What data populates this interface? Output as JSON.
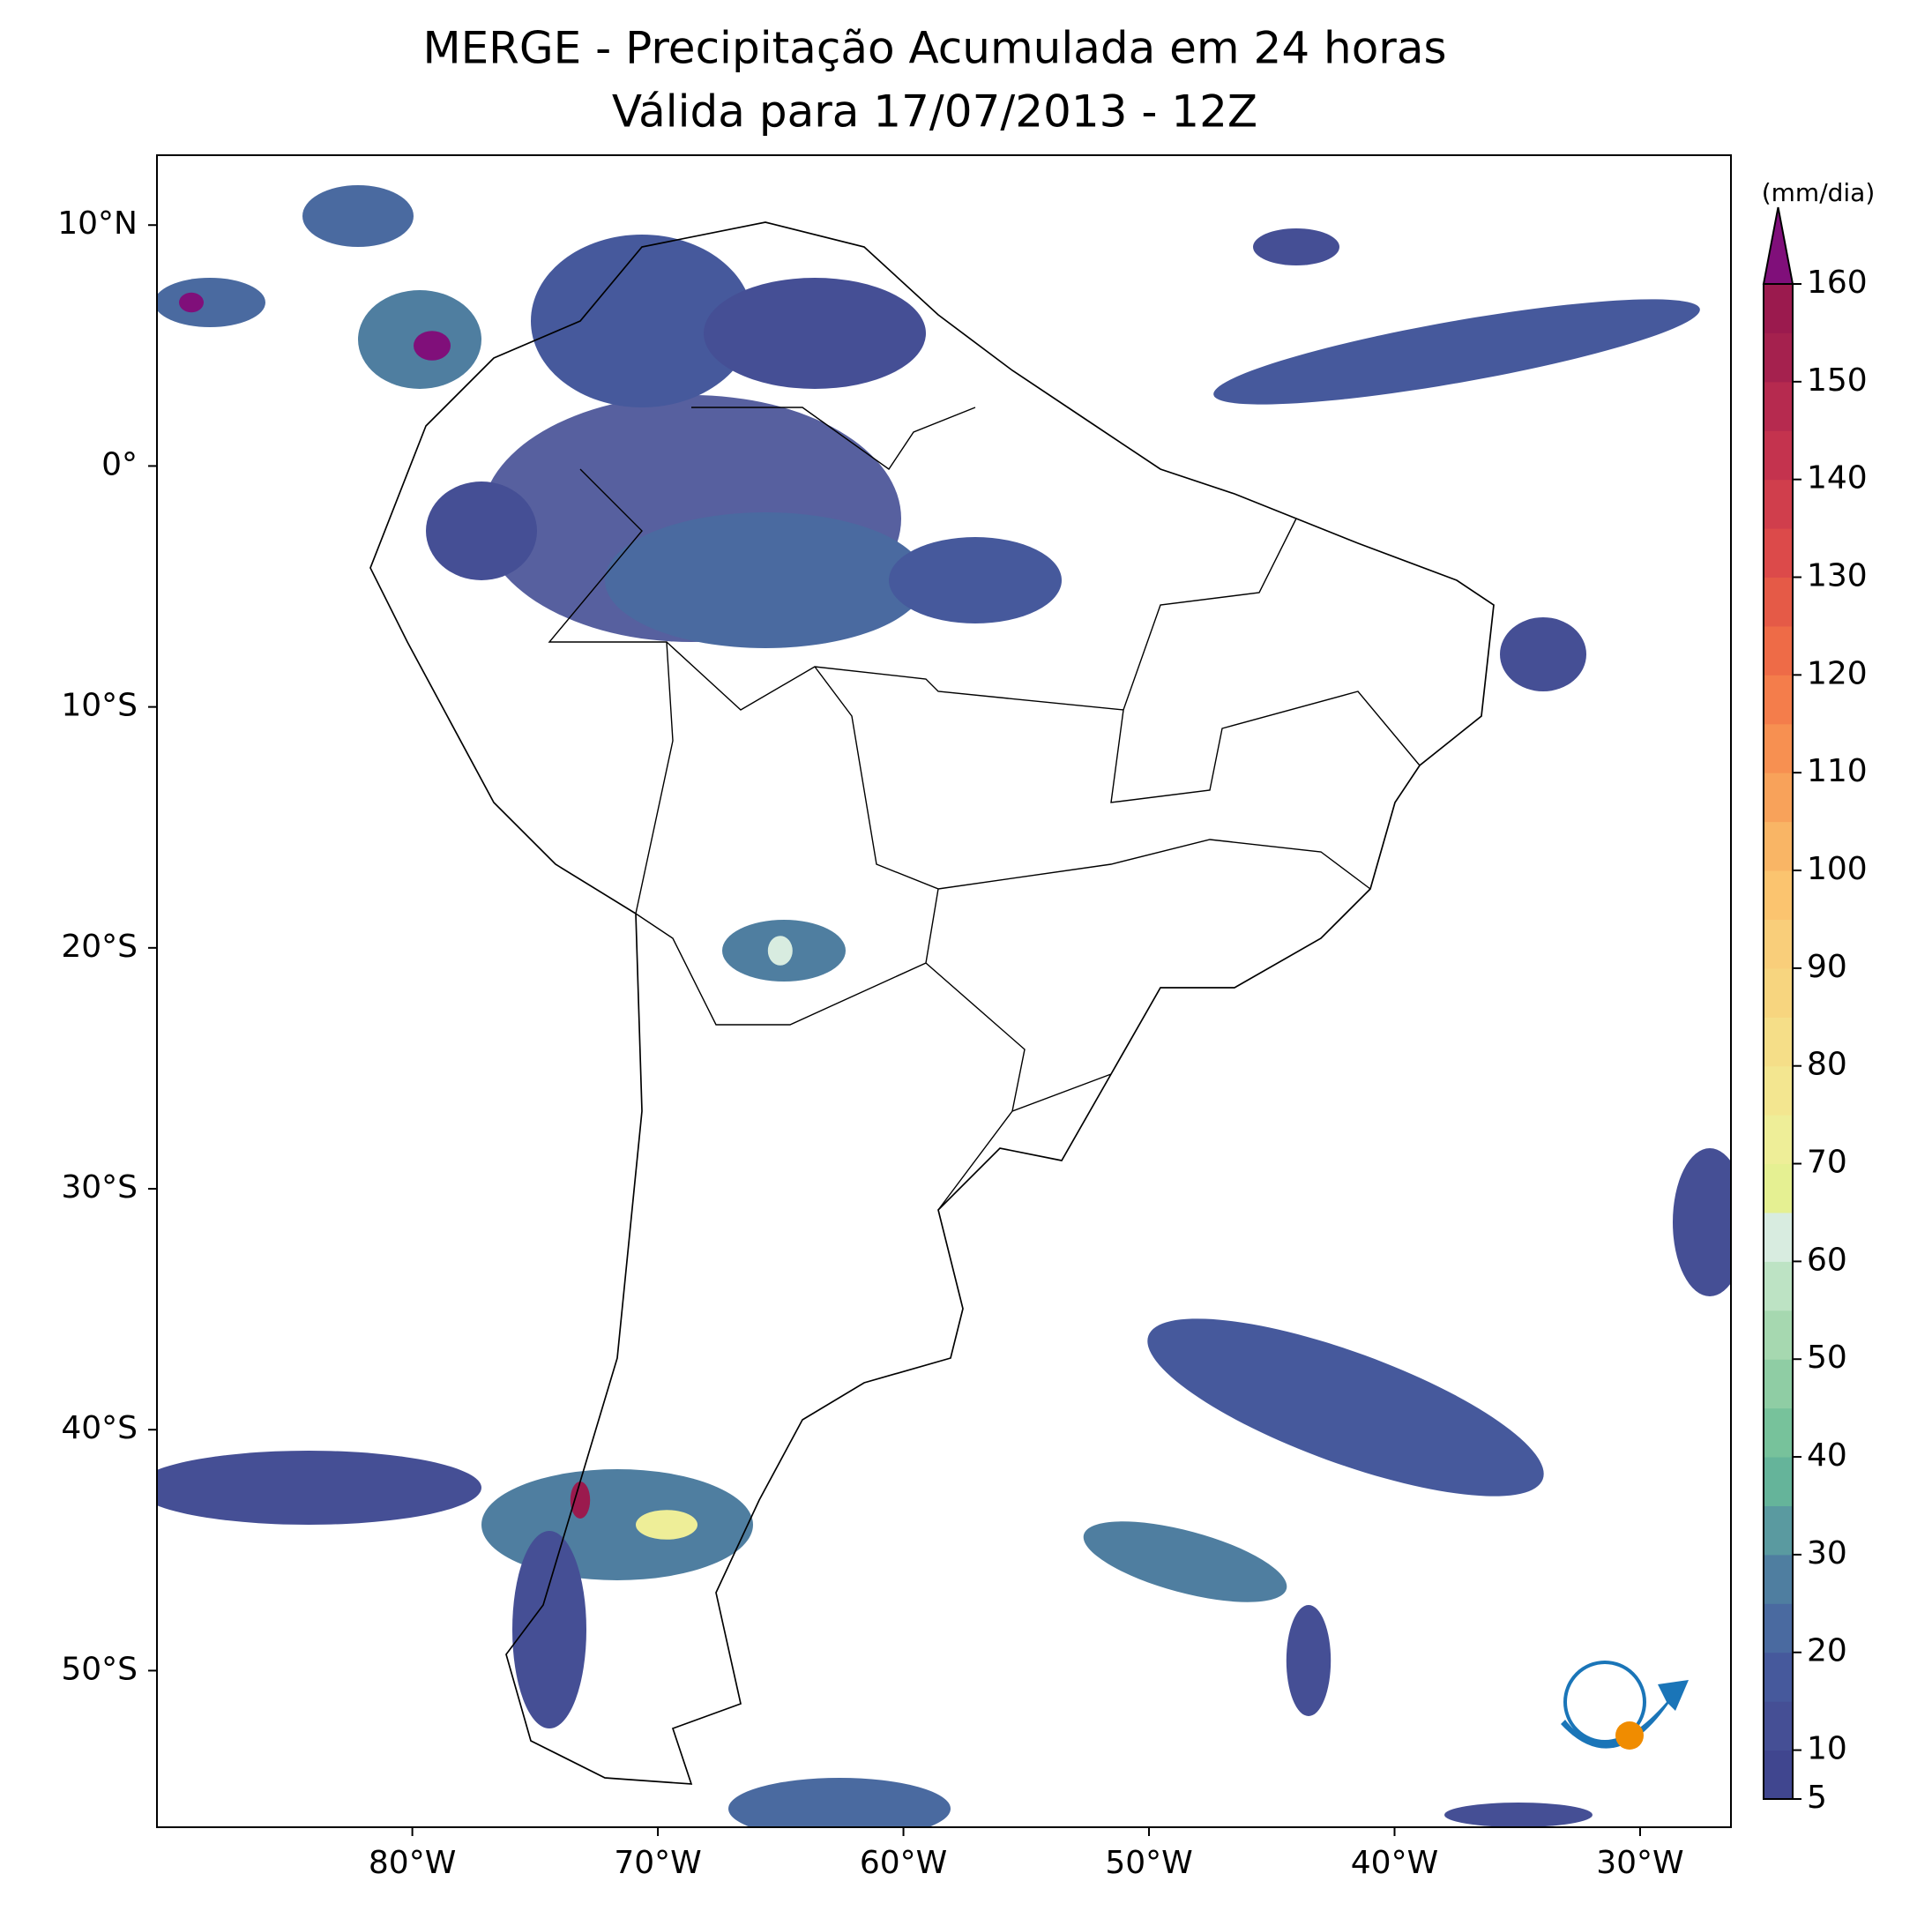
{
  "chart_data": {
    "type": "map",
    "title": "MERGE - Precipitação Acumulada em 24 horas",
    "subtitle": "Válida para 17/07/2013 - 12Z",
    "xlim": [
      -90.4,
      -26.3
    ],
    "ylim": [
      -56.5,
      12.9
    ],
    "xticks": [
      {
        "value": -80,
        "label": "80°W"
      },
      {
        "value": -70,
        "label": "70°W"
      },
      {
        "value": -60,
        "label": "60°W"
      },
      {
        "value": -50,
        "label": "50°W"
      },
      {
        "value": -40,
        "label": "40°W"
      },
      {
        "value": -30,
        "label": "30°W"
      }
    ],
    "yticks": [
      {
        "value": 10,
        "label": "10°N"
      },
      {
        "value": 0,
        "label": "0°"
      },
      {
        "value": -10,
        "label": "10°S"
      },
      {
        "value": -20,
        "label": "20°S"
      },
      {
        "value": -30,
        "label": "30°S"
      },
      {
        "value": -40,
        "label": "40°S"
      },
      {
        "value": -50,
        "label": "50°S"
      }
    ],
    "colorbar": {
      "label": "(mm/dia)",
      "lim": [
        5,
        160
      ],
      "ticks": [
        5,
        10,
        20,
        30,
        40,
        50,
        60,
        70,
        80,
        90,
        100,
        110,
        120,
        130,
        140,
        150,
        160
      ],
      "colors": [
        "#40468f",
        "#454f95",
        "#46599c",
        "#4a6aa0",
        "#4f7ea0",
        "#5a9aa0",
        "#65b49a",
        "#77c29b",
        "#8fcda4",
        "#a6d8b0",
        "#bde3c4",
        "#d8ece0",
        "#e5f092",
        "#eeee98",
        "#f3e690",
        "#f5de88",
        "#f7d57f",
        "#f9ce7a",
        "#fbc46f",
        "#f9b565",
        "#f8a25a",
        "#f79051",
        "#f47d4b",
        "#ee6b47",
        "#e55a47",
        "#dc4a4a",
        "#d03e4c",
        "#c4334e",
        "#b62a4f",
        "#a5214e",
        "#9b1a4e"
      ],
      "extend_color": "#800f7a"
    }
  }
}
